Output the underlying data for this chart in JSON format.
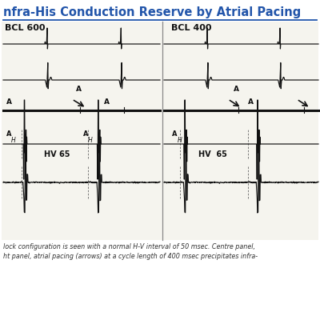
{
  "title": "nfra-His Conduction Reserve by Atrial Pacing",
  "title_color": "#2255aa",
  "title_fontsize": 10.5,
  "bg_color": "#ffffff",
  "ecg_bg": "#f5f4ee",
  "bcl_left": "BCL 600",
  "bcl_right": "BCL 400",
  "hv_left": "HV 65",
  "hv_right": "HV  65",
  "caption_line1": "lock configuration is seen with a normal H-V interval of 50 msec. Centre panel,",
  "caption_line2": "ht panel, atrial pacing (arrows) at a cycle length of 400 msec precipitates infra-",
  "divider_color": "#2255aa",
  "trace_color": "#111111",
  "dashed_color": "#666666",
  "panel_divider": "#888888"
}
